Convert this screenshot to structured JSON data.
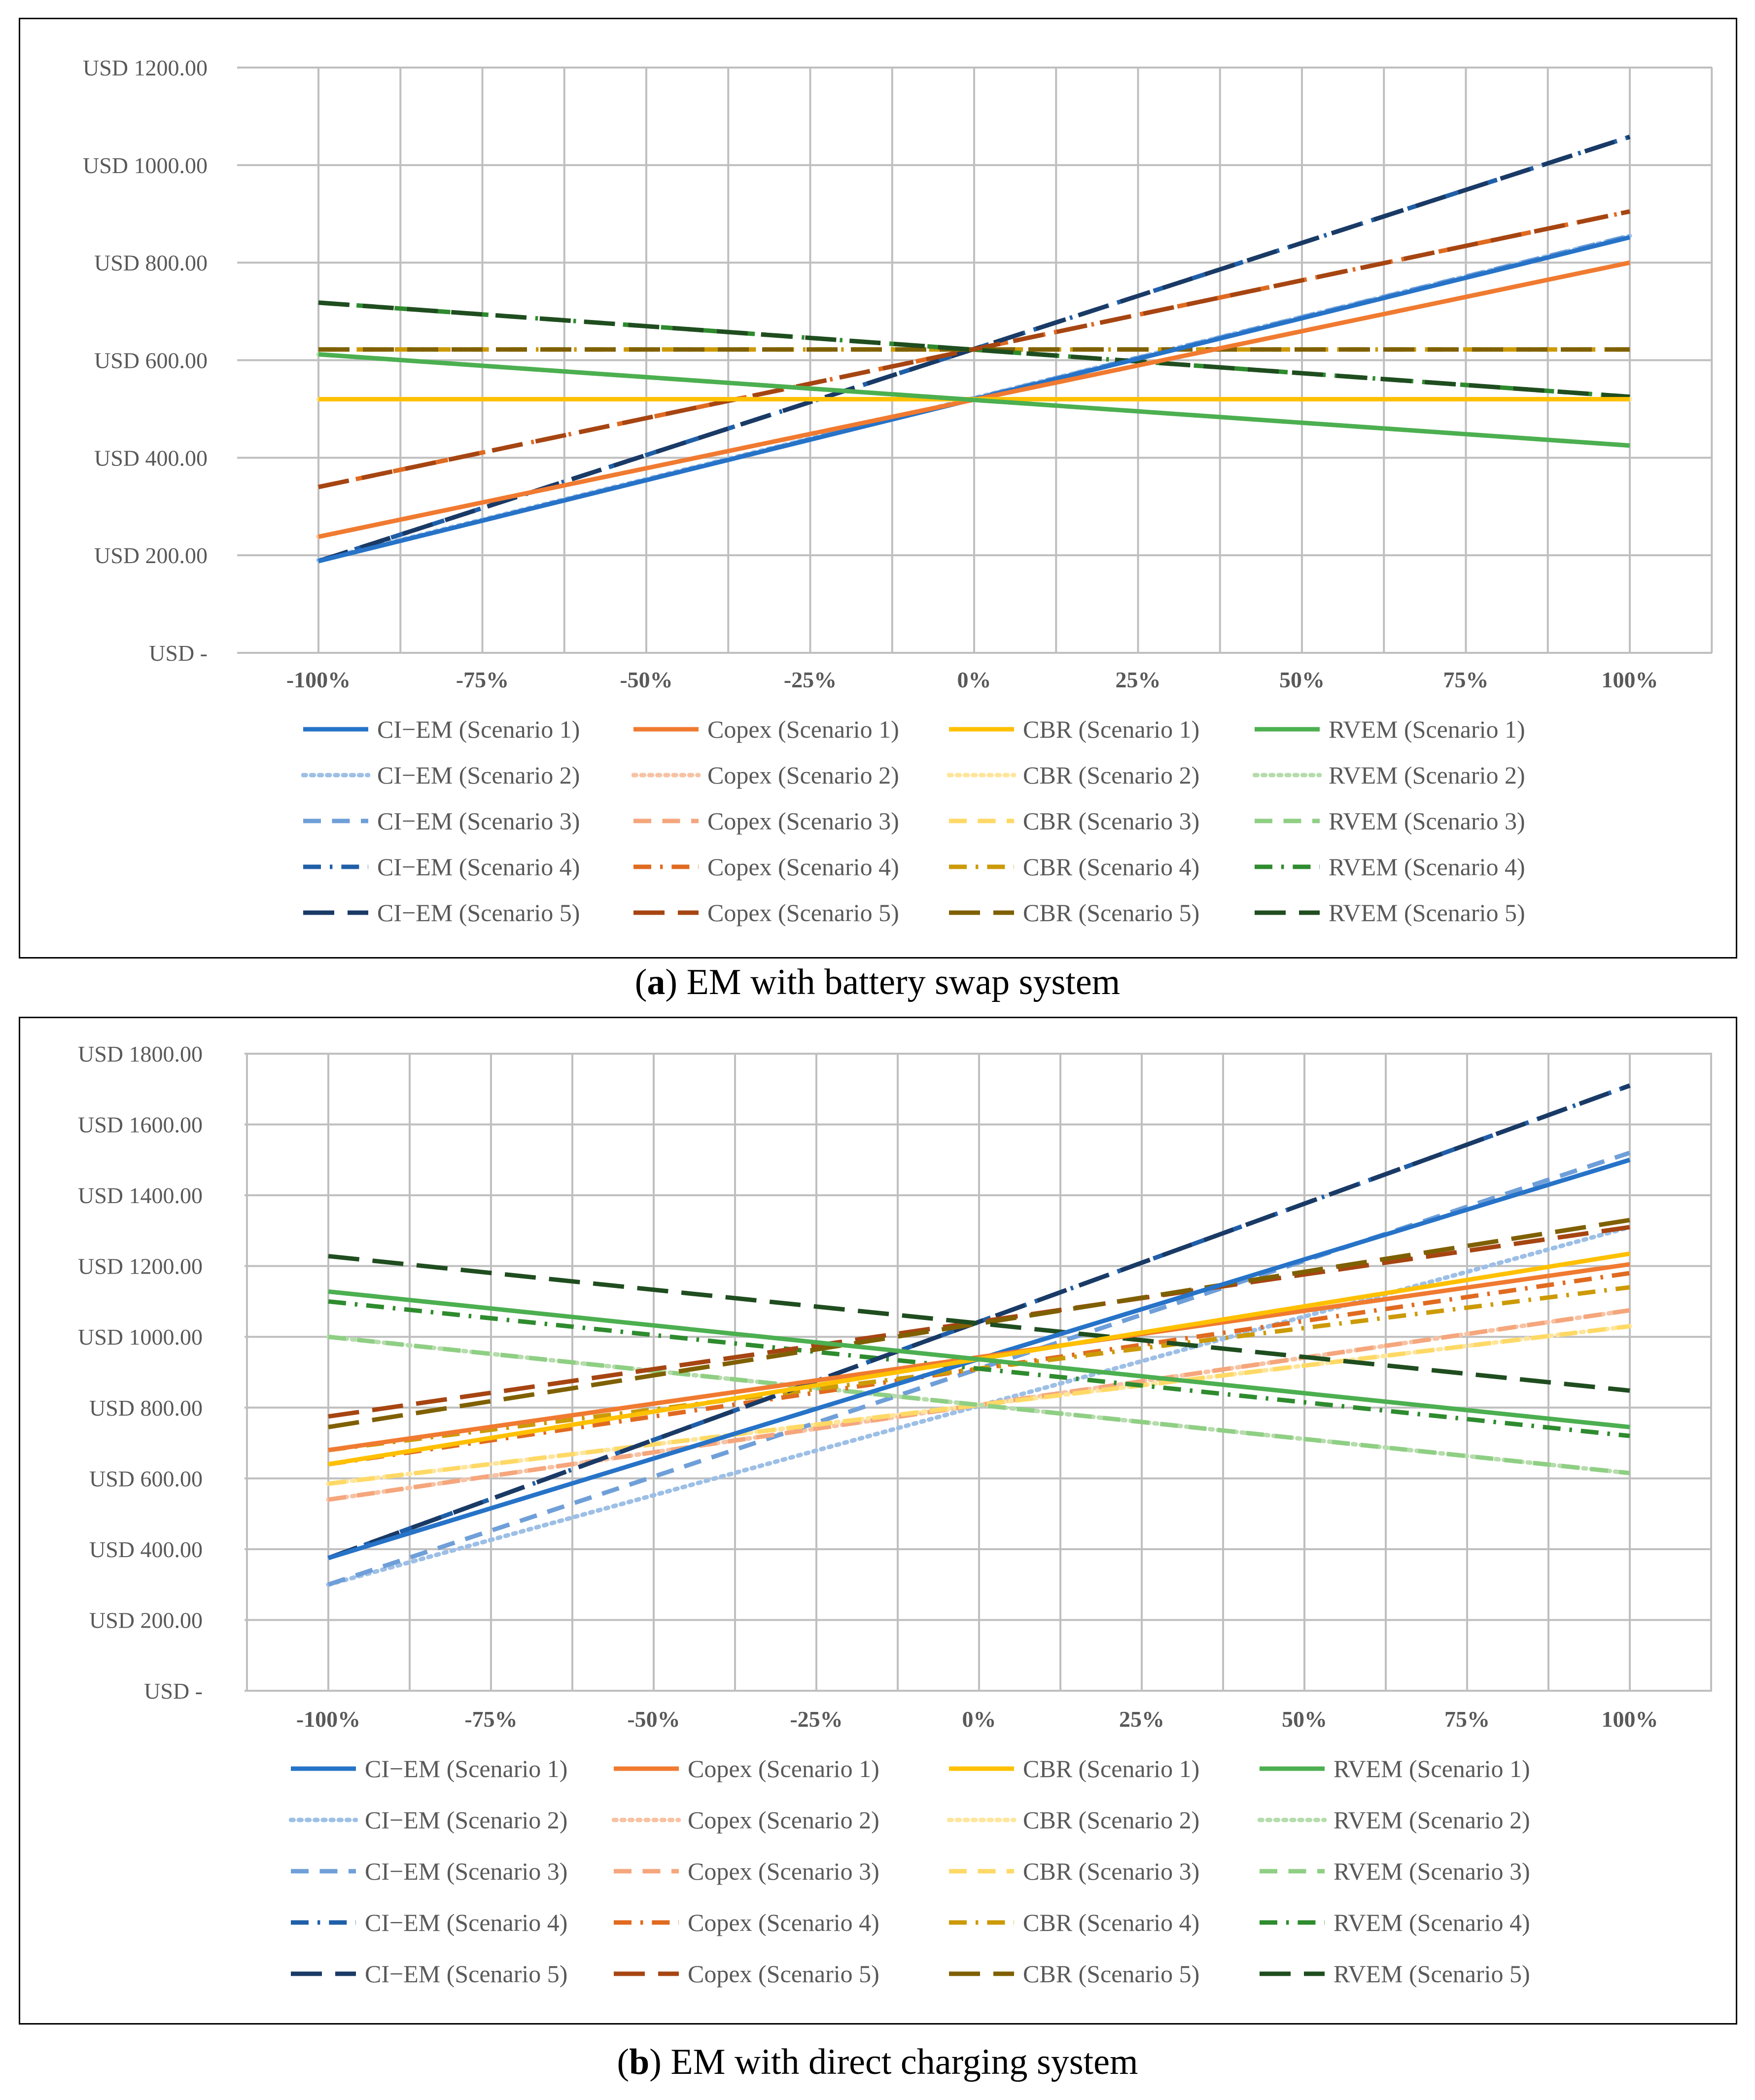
{
  "colors": {
    "CI-EM": [
      "#2673c8",
      "#9dbfe6",
      "#6f9fd8",
      "#1f5fa8",
      "#1a3a66"
    ],
    "Copex": [
      "#f07a30",
      "#f7c2a3",
      "#f5a67c",
      "#e06a20",
      "#a64512"
    ],
    "CBR": [
      "#ffc000",
      "#ffe59a",
      "#ffd966",
      "#cc9a06",
      "#7f6000"
    ],
    "RVEM": [
      "#4caf50",
      "#b5dcab",
      "#8fcf84",
      "#2e8b2e",
      "#1f4d1f"
    ]
  },
  "styles": [
    "solid",
    "dotted",
    "dash",
    "dashdot",
    "longdash"
  ],
  "captions": {
    "a_letter": "a",
    "a_text": ") EM with battery swap system",
    "a_open": "(",
    "b_letter": "b",
    "b_text": ") EM with direct charging system",
    "b_open": "("
  },
  "chart_data": [
    {
      "type": "line",
      "id": "a",
      "title": "EM with battery swap system",
      "x": [
        "-100%",
        "-75%",
        "-50%",
        "-25%",
        "0%",
        "25%",
        "50%",
        "75%",
        "100%"
      ],
      "y_tick_labels": [
        "USD -",
        "USD 200.00",
        "USD 400.00",
        "USD 600.00",
        "USD 800.00",
        "USD 1000.00",
        "USD 1200.00"
      ],
      "ylim": [
        0,
        1200
      ],
      "grid": true,
      "legend_position": "bottom",
      "series": [
        {
          "name": "CI−EM (Scenario 1)",
          "group": "CI-EM",
          "scenario": 1,
          "start": 188,
          "end": 852
        },
        {
          "name": "Copex (Scenario 1)",
          "group": "Copex",
          "scenario": 1,
          "start": 238,
          "end": 800
        },
        {
          "name": "CBR (Scenario 1)",
          "group": "CBR",
          "scenario": 1,
          "start": 520,
          "end": 520
        },
        {
          "name": "RVEM (Scenario 1)",
          "group": "RVEM",
          "scenario": 1,
          "start": 612,
          "end": 425
        },
        {
          "name": "CI−EM (Scenario 2)",
          "group": "CI-EM",
          "scenario": 2,
          "start": 190,
          "end": 855
        },
        {
          "name": "Copex (Scenario 2)",
          "group": "Copex",
          "scenario": 2,
          "start": 238,
          "end": 800
        },
        {
          "name": "CBR (Scenario 2)",
          "group": "CBR",
          "scenario": 2,
          "start": 520,
          "end": 520
        },
        {
          "name": "RVEM (Scenario 2)",
          "group": "RVEM",
          "scenario": 2,
          "start": 612,
          "end": 425
        },
        {
          "name": "CI−EM (Scenario 3)",
          "group": "CI-EM",
          "scenario": 3,
          "start": 188,
          "end": 855
        },
        {
          "name": "Copex (Scenario 3)",
          "group": "Copex",
          "scenario": 3,
          "start": 238,
          "end": 800
        },
        {
          "name": "CBR (Scenario 3)",
          "group": "CBR",
          "scenario": 3,
          "start": 520,
          "end": 520
        },
        {
          "name": "RVEM (Scenario 3)",
          "group": "RVEM",
          "scenario": 3,
          "start": 612,
          "end": 425
        },
        {
          "name": "CI−EM (Scenario 4)",
          "group": "CI-EM",
          "scenario": 4,
          "start": 188,
          "end": 1058
        },
        {
          "name": "Copex (Scenario 4)",
          "group": "Copex",
          "scenario": 4,
          "start": 340,
          "end": 905
        },
        {
          "name": "CBR (Scenario 4)",
          "group": "CBR",
          "scenario": 4,
          "start": 622,
          "end": 622
        },
        {
          "name": "RVEM (Scenario 4)",
          "group": "RVEM",
          "scenario": 4,
          "start": 718,
          "end": 525
        },
        {
          "name": "CI−EM (Scenario 5)",
          "group": "CI-EM",
          "scenario": 5,
          "start": 188,
          "end": 1058
        },
        {
          "name": "Copex (Scenario 5)",
          "group": "Copex",
          "scenario": 5,
          "start": 340,
          "end": 905
        },
        {
          "name": "CBR (Scenario 5)",
          "group": "CBR",
          "scenario": 5,
          "start": 622,
          "end": 622
        },
        {
          "name": "RVEM (Scenario 5)",
          "group": "RVEM",
          "scenario": 5,
          "start": 718,
          "end": 525
        }
      ]
    },
    {
      "type": "line",
      "id": "b",
      "title": "EM with direct charging system",
      "x": [
        "-100%",
        "-75%",
        "-50%",
        "-25%",
        "0%",
        "25%",
        "50%",
        "75%",
        "100%"
      ],
      "y_tick_labels": [
        "USD -",
        "USD 200.00",
        "USD 400.00",
        "USD 600.00",
        "USD 800.00",
        "USD 1000.00",
        "USD 1200.00",
        "USD 1400.00",
        "USD 1600.00",
        "USD 1800.00"
      ],
      "ylim": [
        0,
        1800
      ],
      "grid": true,
      "legend_position": "bottom",
      "series": [
        {
          "name": "CI−EM (Scenario 1)",
          "group": "CI-EM",
          "scenario": 1,
          "start": 375,
          "end": 1500
        },
        {
          "name": "Copex (Scenario 1)",
          "group": "Copex",
          "scenario": 1,
          "start": 680,
          "end": 1205
        },
        {
          "name": "CBR (Scenario 1)",
          "group": "CBR",
          "scenario": 1,
          "start": 640,
          "end": 1235
        },
        {
          "name": "RVEM (Scenario 1)",
          "group": "RVEM",
          "scenario": 1,
          "start": 1128,
          "end": 745
        },
        {
          "name": "CI−EM (Scenario 2)",
          "group": "CI-EM",
          "scenario": 2,
          "start": 300,
          "end": 1310
        },
        {
          "name": "Copex (Scenario 2)",
          "group": "Copex",
          "scenario": 2,
          "start": 540,
          "end": 1075
        },
        {
          "name": "CBR (Scenario 2)",
          "group": "CBR",
          "scenario": 2,
          "start": 585,
          "end": 1030
        },
        {
          "name": "RVEM (Scenario 2)",
          "group": "RVEM",
          "scenario": 2,
          "start": 1000,
          "end": 615
        },
        {
          "name": "CI−EM (Scenario 3)",
          "group": "CI-EM",
          "scenario": 3,
          "start": 300,
          "end": 1520
        },
        {
          "name": "Copex (Scenario 3)",
          "group": "Copex",
          "scenario": 3,
          "start": 540,
          "end": 1075
        },
        {
          "name": "CBR (Scenario 3)",
          "group": "CBR",
          "scenario": 3,
          "start": 585,
          "end": 1030
        },
        {
          "name": "RVEM (Scenario 3)",
          "group": "RVEM",
          "scenario": 3,
          "start": 1000,
          "end": 615
        },
        {
          "name": "CI−EM (Scenario 4)",
          "group": "CI-EM",
          "scenario": 4,
          "start": 375,
          "end": 1710
        },
        {
          "name": "Copex (Scenario 4)",
          "group": "Copex",
          "scenario": 4,
          "start": 640,
          "end": 1180
        },
        {
          "name": "CBR (Scenario 4)",
          "group": "CBR",
          "scenario": 4,
          "start": 680,
          "end": 1140
        },
        {
          "name": "RVEM (Scenario 4)",
          "group": "RVEM",
          "scenario": 4,
          "start": 1100,
          "end": 720
        },
        {
          "name": "CI−EM (Scenario 5)",
          "group": "CI-EM",
          "scenario": 5,
          "start": 375,
          "end": 1710
        },
        {
          "name": "Copex (Scenario 5)",
          "group": "Copex",
          "scenario": 5,
          "start": 775,
          "end": 1310
        },
        {
          "name": "CBR (Scenario 5)",
          "group": "CBR",
          "scenario": 5,
          "start": 745,
          "end": 1330
        },
        {
          "name": "RVEM (Scenario 5)",
          "group": "RVEM",
          "scenario": 5,
          "start": 1228,
          "end": 848
        }
      ]
    }
  ]
}
